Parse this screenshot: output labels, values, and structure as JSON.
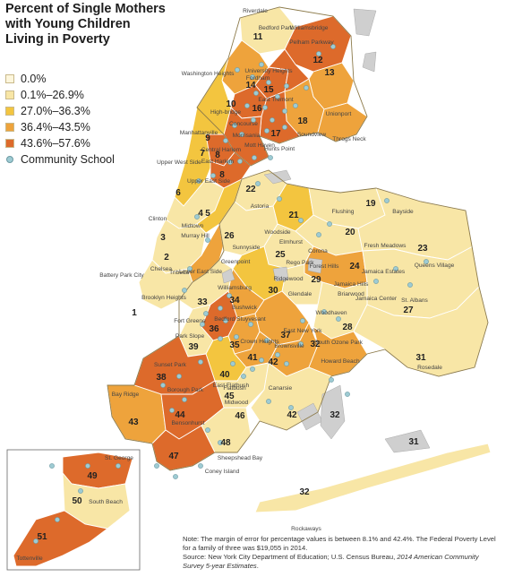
{
  "legend": {
    "title_lines": [
      "Percent of Single Mothers",
      "with Young Children",
      "Living in Poverty"
    ],
    "items": [
      {
        "label": "0.0%",
        "color": "#fdf6dc"
      },
      {
        "label": "0.1%–26.9%",
        "color": "#f8e6a6"
      },
      {
        "label": "27.0%–36.3%",
        "color": "#f3c53f"
      },
      {
        "label": "36.4%–43.5%",
        "color": "#eea33c"
      },
      {
        "label": "43.6%–57.6%",
        "color": "#dd6a2b"
      }
    ],
    "school_label": "Community School",
    "school_color": "#9ecbd3"
  },
  "districts": [
    {
      "id": "1",
      "bin": 1
    },
    {
      "id": "2",
      "bin": 1
    },
    {
      "id": "3",
      "bin": 1
    },
    {
      "id": "4",
      "bin": 2
    },
    {
      "id": "5",
      "bin": 3
    },
    {
      "id": "6",
      "bin": 2
    },
    {
      "id": "7",
      "bin": 4
    },
    {
      "id": "8",
      "bin": 4
    },
    {
      "id": "9",
      "bin": 4
    },
    {
      "id": "10",
      "bin": 3
    },
    {
      "id": "11",
      "bin": 1
    },
    {
      "id": "12",
      "bin": 4
    },
    {
      "id": "13",
      "bin": 3
    },
    {
      "id": "14",
      "bin": 4
    },
    {
      "id": "15",
      "bin": 4
    },
    {
      "id": "16",
      "bin": 4
    },
    {
      "id": "17",
      "bin": 4
    },
    {
      "id": "18",
      "bin": 3
    },
    {
      "id": "19",
      "bin": 1
    },
    {
      "id": "20",
      "bin": 1
    },
    {
      "id": "21",
      "bin": 2
    },
    {
      "id": "22",
      "bin": 1
    },
    {
      "id": "23",
      "bin": 1
    },
    {
      "id": "24",
      "bin": 3
    },
    {
      "id": "25",
      "bin": 1
    },
    {
      "id": "26",
      "bin": 1
    },
    {
      "id": "27",
      "bin": 1
    },
    {
      "id": "28",
      "bin": 1
    },
    {
      "id": "29",
      "bin": 1
    },
    {
      "id": "30",
      "bin": 2
    },
    {
      "id": "31",
      "bin": 1
    },
    {
      "id": "32",
      "bin": 3
    },
    {
      "id": "33",
      "bin": 1
    },
    {
      "id": "34",
      "bin": 3
    },
    {
      "id": "35",
      "bin": 3
    },
    {
      "id": "36",
      "bin": 4
    },
    {
      "id": "37",
      "bin": 3
    },
    {
      "id": "38",
      "bin": 4
    },
    {
      "id": "39",
      "bin": 1
    },
    {
      "id": "40",
      "bin": 2
    },
    {
      "id": "41",
      "bin": 3
    },
    {
      "id": "42",
      "bin": 3
    },
    {
      "id": "43",
      "bin": 3
    },
    {
      "id": "44",
      "bin": 4
    },
    {
      "id": "45",
      "bin": 1
    },
    {
      "id": "46",
      "bin": 1
    },
    {
      "id": "47",
      "bin": 4
    },
    {
      "id": "48",
      "bin": 1
    },
    {
      "id": "49",
      "bin": 4
    },
    {
      "id": "50",
      "bin": 1
    },
    {
      "id": "51",
      "bin": 4
    }
  ],
  "places": [
    "Riverdale",
    "Bedford Park",
    "Williamsbridge",
    "Pelham Parkway",
    "Washington Heights",
    "University Heights",
    "Fordham",
    "High-bridge",
    "East Tremont",
    "Concourse",
    "Unionport",
    "Morrisania",
    "Soundview",
    "Throgs Neck",
    "Manhattanville",
    "Mott Haven",
    "Hunts Point",
    "Central Harlem",
    "Upper West Side",
    "East Harlem",
    "Upper East Side",
    "Astoria",
    "Flushing",
    "Bayside",
    "Clinton",
    "Midtown",
    "Murray Hill",
    "Woodside",
    "Sunnyside",
    "Elmhurst",
    "Corona",
    "Fresh Meadows",
    "Chelsea",
    "Greenpoint",
    "Rego Park",
    "Forest Hills",
    "Queens Village",
    "Jamaica Estates",
    "Jamaica Hills",
    "Tribeca",
    "Lower East Side",
    "Battery Park City",
    "Williamsburg",
    "Ridgewood",
    "Glendale",
    "Briarwood",
    "Jamaica Center",
    "St. Albans",
    "Brooklyn Heights",
    "Bushwick",
    "Bedford Stuyvesant",
    "Woodhaven",
    "Fort Greene",
    "Park Slope",
    "Crown Heights",
    "East New York",
    "South Ozone Park",
    "Brownsville",
    "Howard Beach",
    "Rosedale",
    "Sunset Park",
    "East Flatbush",
    "Borough Park",
    "Flatbush",
    "Canarsie",
    "Bay Ridge",
    "Midwood",
    "Bensonhurst",
    "Sheepshead Bay",
    "Coney Island",
    "Rockaways",
    "St. George",
    "South Beach",
    "Tottenville"
  ],
  "note": {
    "text": "Note: The margin of error for percentage values is between 8.1% and 42.4%. The Federal Poverty Level for a family of three was $19,055 in 2014.",
    "source_prefix": "Source: New York City Department of Education; U.S. Census Bureau, ",
    "source_italic": "2014 American Community Survey 5-year Estimates",
    "source_suffix": "."
  }
}
